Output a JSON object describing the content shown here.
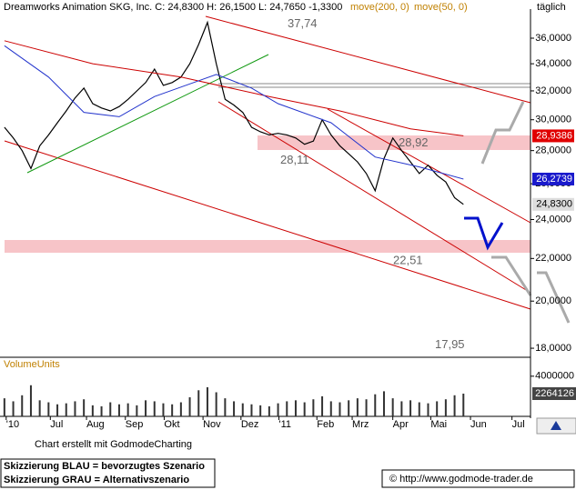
{
  "chart_data": [
    {
      "type": "line",
      "title": "Dreamworks Animation SKG, Inc. C: 24,8300 H: 26,1500 L: 24,7650 -1,3300",
      "frequency": "täglich",
      "log_scale": true,
      "ylim": [
        17.64,
        38.42
      ],
      "yticks": [
        {
          "value": 36,
          "label": "36,0000"
        },
        {
          "value": 34,
          "label": "34,0000"
        },
        {
          "value": 32,
          "label": "32,0000"
        },
        {
          "value": 30,
          "label": "30,0000"
        },
        {
          "value": 28,
          "label": "28,0000"
        },
        {
          "value": 26,
          "label": "26,0000"
        },
        {
          "value": 24,
          "label": "24,0000"
        },
        {
          "value": 22,
          "label": "22,0000"
        },
        {
          "value": 20,
          "label": "20,0000"
        },
        {
          "value": 18,
          "label": "18,0000"
        }
      ],
      "xlim": [
        -0.5,
        59.6
      ],
      "xticks": [
        {
          "value": 0.2,
          "label": "'10"
        },
        {
          "value": 5.2,
          "label": "Jul"
        },
        {
          "value": 9.3,
          "label": "Aug"
        },
        {
          "value": 13.7,
          "label": "Sep"
        },
        {
          "value": 18.1,
          "label": "Okt"
        },
        {
          "value": 22.5,
          "label": "Nov"
        },
        {
          "value": 26.8,
          "label": "Dez"
        },
        {
          "value": 31.1,
          "label": "'11"
        },
        {
          "value": 35.4,
          "label": "Feb"
        },
        {
          "value": 39.4,
          "label": "Mrz"
        },
        {
          "value": 44.0,
          "label": "Apr"
        },
        {
          "value": 48.3,
          "label": "Mai"
        },
        {
          "value": 52.8,
          "label": "Jun"
        },
        {
          "value": 57.5,
          "label": "Jul"
        }
      ],
      "series": [
        {
          "color": "#000000",
          "x": [
            0,
            1,
            2,
            3,
            4,
            5,
            6,
            7,
            8,
            9,
            10,
            11,
            12,
            13,
            14,
            15,
            16,
            17,
            18,
            19,
            20,
            21,
            22,
            23,
            24,
            25,
            26,
            27,
            28,
            29,
            30,
            31,
            32,
            33,
            34,
            35,
            36,
            37,
            38,
            39,
            40,
            41,
            42,
            43,
            44,
            45,
            46,
            47,
            48,
            49,
            50,
            51,
            52
          ],
          "values": [
            29.5,
            28.8,
            28.0,
            26.9,
            28.3,
            29.0,
            29.8,
            30.6,
            31.5,
            32.2,
            31.1,
            30.8,
            30.6,
            30.9,
            31.4,
            32.0,
            32.6,
            33.6,
            32.4,
            32.6,
            33.0,
            34.0,
            35.5,
            37.3,
            34.0,
            31.4,
            31.0,
            30.5,
            29.5,
            29.2,
            29.0,
            29.1,
            29.0,
            28.8,
            28.4,
            28.6,
            30.0,
            29.0,
            28.3,
            27.8,
            27.3,
            26.6,
            25.6,
            27.5,
            28.8,
            28.0,
            27.3,
            26.6,
            27.1,
            26.5,
            26.1,
            25.2,
            24.83
          ]
        },
        {
          "name": "move(200, 0)",
          "color": "#cc0000",
          "x": [
            0,
            10,
            20,
            30,
            38,
            46,
            52
          ],
          "values": [
            35.8,
            34.0,
            33.0,
            31.6,
            30.6,
            29.4,
            28.94
          ]
        },
        {
          "name": "move(50, 0)",
          "color": "#2233cc",
          "x": [
            0,
            5,
            9,
            13,
            17,
            21,
            24,
            28,
            31,
            37,
            42,
            47,
            52
          ],
          "values": [
            35.4,
            33.0,
            30.5,
            30.2,
            31.6,
            32.5,
            33.2,
            32.2,
            31.1,
            29.8,
            27.6,
            27.0,
            26.27
          ]
        }
      ],
      "price_tags": [
        {
          "value": 28.9386,
          "label": "28,9386",
          "color": "#e00000"
        },
        {
          "value": 26.2739,
          "label": "26,2739",
          "color": "#1a1acc"
        },
        {
          "value": 24.83,
          "label": "24,8300",
          "color": "#dddddd"
        }
      ],
      "annotations": [
        {
          "value": 37.74,
          "label": "37,74"
        },
        {
          "value": 28.92,
          "label": "28,92"
        },
        {
          "value": 28.11,
          "label": "28,11"
        },
        {
          "value": 22.51,
          "label": "22,51"
        },
        {
          "value": 17.95,
          "label": "17,95"
        }
      ]
    },
    {
      "type": "bar",
      "title": "VolumeUnits",
      "color": "#333333",
      "ylim": [
        0,
        4800000
      ],
      "yticks": [
        4000000
      ],
      "x": [
        0,
        1,
        2,
        3,
        4,
        5,
        6,
        7,
        8,
        9,
        10,
        11,
        12,
        13,
        14,
        15,
        16,
        17,
        18,
        19,
        20,
        21,
        22,
        23,
        24,
        25,
        26,
        27,
        28,
        29,
        30,
        31,
        32,
        33,
        34,
        35,
        36,
        37,
        38,
        39,
        40,
        41,
        42,
        43,
        44,
        45,
        46,
        47,
        48,
        49,
        50,
        51,
        52
      ],
      "values": [
        1800000,
        1500000,
        2100000,
        3100000,
        1600000,
        1400000,
        1200000,
        1300000,
        1500000,
        1700000,
        1100000,
        1000000,
        1400000,
        1200000,
        1300000,
        1100000,
        1600000,
        1500000,
        1300000,
        1200000,
        1400000,
        1900000,
        2600000,
        2900000,
        2400000,
        1800000,
        1500000,
        1300000,
        1200000,
        1100000,
        1000000,
        1300000,
        1500000,
        1600000,
        1400000,
        1700000,
        2000000,
        1500000,
        1400000,
        1600000,
        1800000,
        1700000,
        2200000,
        2500000,
        1800000,
        1500000,
        1600000,
        1400000,
        1300000,
        1500000,
        1700000,
        2100000,
        2264126
      ]
    }
  ],
  "footer": {
    "credit": "Chart erstellt mit GodmodeCharting",
    "notes": [
      "Skizzierung BLAU = bevorzugtes Szenario",
      "Skizzierung GRAU = Alternativszenario"
    ],
    "copyright": "© http://www.godmode-trader.de"
  }
}
